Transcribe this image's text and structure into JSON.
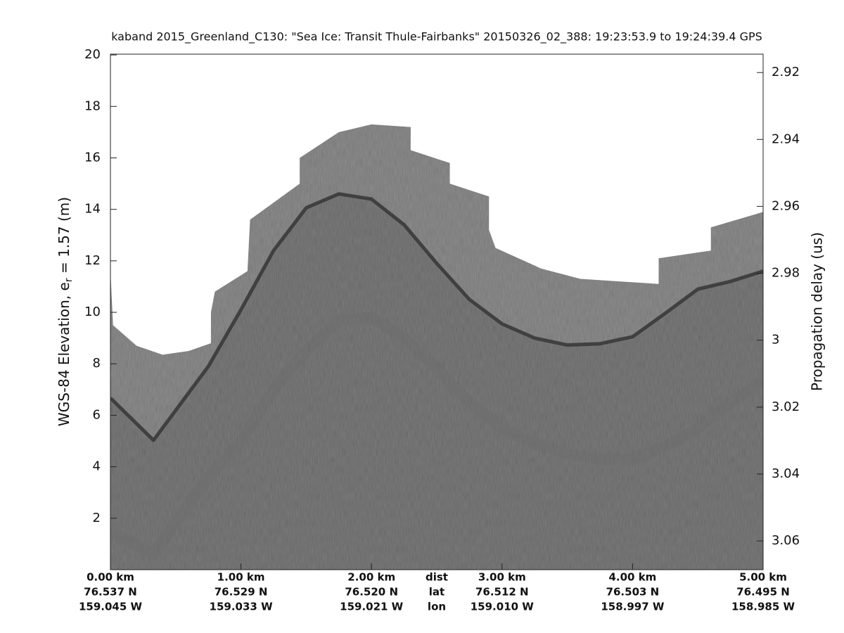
{
  "chart_data": {
    "type": "echogram",
    "title": "kaband 2015_Greenland_C130: \"Sea Ice: Transit Thule-Fairbanks\"  20150326_02_388: 19:23:53.9 to 19:24:39.4 GPS",
    "ylabel": "WGS-84 Elevation, e",
    "ylabel_sub": "r",
    "ylabel_rest": " = 1.57 (m)",
    "y2label": "Propagation delay (us)",
    "xlim": [
      0,
      5
    ],
    "xticks": [
      {
        "value": 0,
        "label": "0.00 km"
      },
      {
        "value": 1,
        "label": "1.00 km"
      },
      {
        "value": 2,
        "label": "2.00 km"
      },
      {
        "value": 3,
        "label": "3.00 km"
      },
      {
        "value": 4,
        "label": "4.00 km"
      },
      {
        "value": 5,
        "label": "5.00 km"
      }
    ],
    "lat_labels": [
      "76.537 N",
      "76.529 N",
      "76.520 N",
      "76.512 N",
      "76.503 N",
      "76.495 N"
    ],
    "lon_labels": [
      "159.045 W",
      "159.033 W",
      "159.021 W",
      "159.010 W",
      "158.997 W",
      "158.985 W"
    ],
    "row_labels": [
      "dist",
      "lat",
      "lon"
    ],
    "ylim": [
      0,
      20.03
    ],
    "yticks": [
      2,
      4,
      6,
      8,
      10,
      12,
      14,
      16,
      18,
      20
    ],
    "y2lim": [
      3.0686,
      2.9145
    ],
    "y2ticks": [
      2.92,
      2.94,
      2.96,
      2.98,
      3,
      3.02,
      3.04,
      3.06
    ],
    "top_x": [
      0,
      0.02,
      0.2,
      0.4,
      0.6,
      0.77,
      0.77,
      0.8,
      1.05,
      1.07,
      1.45,
      1.45,
      1.75,
      2.0,
      2.3,
      2.3,
      2.6,
      2.6,
      2.9,
      2.9,
      2.95,
      3.3,
      3.6,
      4.2,
      4.2,
      4.6,
      4.6,
      5.0
    ],
    "top_values": [
      11.6,
      9.5,
      8.7,
      8.35,
      8.5,
      8.8,
      10.0,
      10.8,
      11.6,
      13.6,
      15.0,
      16.0,
      17.0,
      17.3,
      17.2,
      16.3,
      15.8,
      15.0,
      14.5,
      13.2,
      12.5,
      11.7,
      11.3,
      11.1,
      12.1,
      12.4,
      13.3,
      13.9
    ],
    "top_color": "#8f8f8f",
    "x": [
      0,
      0.33,
      0.75,
      1.0,
      1.25,
      1.5,
      1.75,
      2.0,
      2.25,
      2.5,
      2.75,
      3.0,
      3.25,
      3.5,
      3.75,
      4.0,
      4.25,
      4.5,
      4.75,
      5.0
    ],
    "series": [
      {
        "color": "#3a3a3a",
        "values": [
          6.67,
          5.03,
          7.9,
          10.1,
          12.4,
          14.06,
          14.6,
          14.4,
          13.4,
          11.9,
          10.5,
          9.55,
          9.0,
          8.73,
          8.78,
          9.05,
          9.96,
          10.9,
          11.2,
          11.6
        ]
      },
      {
        "color": "#6c6c6c",
        "values": [
          1.5,
          0.6,
          3.6,
          5.0,
          7.0,
          8.5,
          9.7,
          9.8,
          9.0,
          7.8,
          6.5,
          5.5,
          4.9,
          4.5,
          4.3,
          4.3,
          4.8,
          5.5,
          6.5,
          7.3
        ]
      }
    ],
    "below_color": "#7d7d7d"
  }
}
